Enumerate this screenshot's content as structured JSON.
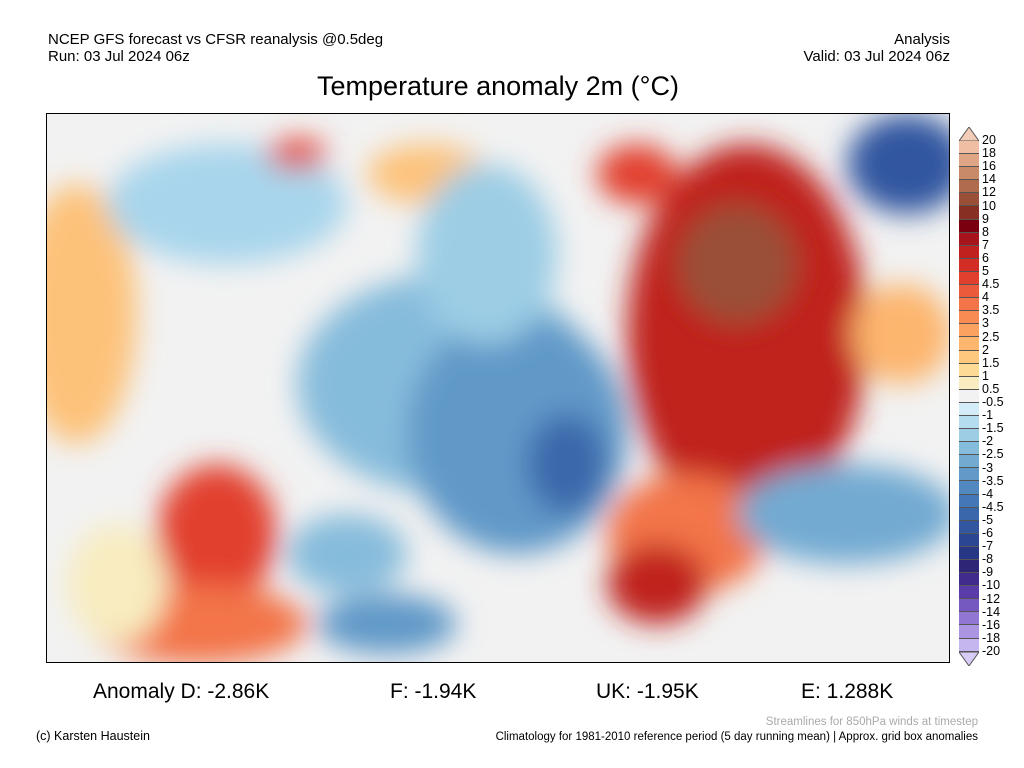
{
  "header": {
    "model": "NCEP GFS forecast vs CFSR reanalysis @0.5deg",
    "run": "Run: 03 Jul 2024 06z",
    "type": "Analysis",
    "valid": "Valid: 03 Jul 2024 06z"
  },
  "title": "Temperature anomaly 2m (°C)",
  "colorbar": {
    "labels": [
      "20",
      "18",
      "16",
      "14",
      "12",
      "10",
      "9",
      "8",
      "7",
      "6",
      "5",
      "4.5",
      "4",
      "3.5",
      "3",
      "2.5",
      "2",
      "1.5",
      "1",
      "0.5",
      "-0.5",
      "-1",
      "-1.5",
      "-2",
      "-2.5",
      "-3",
      "-3.5",
      "-4",
      "-4.5",
      "-5",
      "-6",
      "-7",
      "-8",
      "-9",
      "-10",
      "-12",
      "-14",
      "-16",
      "-18",
      "-20"
    ],
    "colors": [
      "#f0bfa3",
      "#e0a585",
      "#c98a6a",
      "#b06a4d",
      "#9a4f37",
      "#862f22",
      "#7a0010",
      "#a8141c",
      "#c0211f",
      "#d42d26",
      "#e2402f",
      "#ec5a3c",
      "#f37448",
      "#f88b54",
      "#fba261",
      "#fdb66e",
      "#fec97f",
      "#fedb95",
      "#f8ecc0",
      "#f2f2f2",
      "#d4ecf8",
      "#b4ddef",
      "#9ccde5",
      "#86bcdb",
      "#72aad2",
      "#6199c8",
      "#5088bf",
      "#4477b5",
      "#3a67ab",
      "#3257a0",
      "#2b4793",
      "#283785",
      "#2f2577",
      "#412c8d",
      "#5a3ca8",
      "#7659c0",
      "#9176d4",
      "#ab95e2",
      "#c6b6ef"
    ],
    "over_color": "#f3cdb8",
    "under_color": "#d6ccf5"
  },
  "stats": {
    "d": "Anomaly D: -2.86K",
    "f": "F: -1.94K",
    "uk": "UK: -1.95K",
    "e": "E: 1.288K"
  },
  "footer": {
    "credit": "(c) Karsten Haustein",
    "streamlines": "Streamlines for 850hPa winds at timestep",
    "climatology": "Climatology for 1981-2010 reference period (5 day running mean) | Approx. grid box anomalies"
  }
}
